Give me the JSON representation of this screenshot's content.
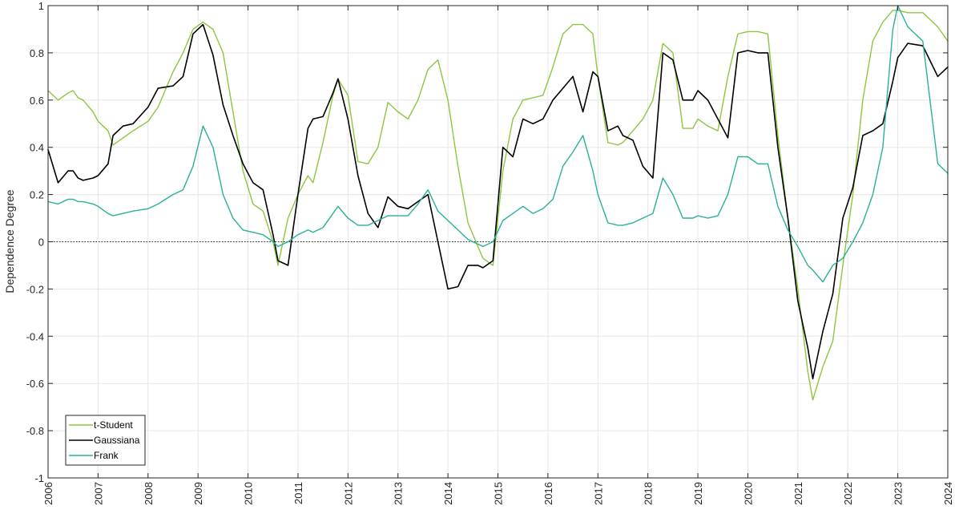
{
  "chart_data": {
    "type": "line",
    "ylabel": "Dependence Degree",
    "xlabel": "",
    "xlim": [
      2006,
      2024
    ],
    "ylim": [
      -1,
      1
    ],
    "x_ticks": [
      2006,
      2007,
      2008,
      2009,
      2010,
      2011,
      2012,
      2013,
      2014,
      2015,
      2016,
      2017,
      2018,
      2019,
      2020,
      2021,
      2022,
      2023,
      2024
    ],
    "y_ticks": [
      -1,
      -0.8,
      -0.6,
      -0.4,
      -0.2,
      0,
      0.2,
      0.4,
      0.6,
      0.8,
      1
    ],
    "grid": true,
    "reference_line": {
      "y": 0,
      "style": "dotted"
    },
    "legend_position": "bottom-left",
    "series": [
      {
        "name": "t-Student",
        "color": "#8dc63f",
        "x": [
          2006.0,
          2006.2,
          2006.4,
          2006.5,
          2006.6,
          2006.7,
          2006.9,
          2007.0,
          2007.2,
          2007.3,
          2007.5,
          2007.7,
          2008.0,
          2008.2,
          2008.5,
          2008.7,
          2008.9,
          2009.1,
          2009.3,
          2009.5,
          2009.7,
          2009.9,
          2010.1,
          2010.3,
          2010.5,
          2010.6,
          2010.8,
          2011.0,
          2011.2,
          2011.3,
          2011.5,
          2011.7,
          2011.8,
          2012.0,
          2012.2,
          2012.4,
          2012.6,
          2012.8,
          2013.0,
          2013.2,
          2013.4,
          2013.6,
          2013.8,
          2014.0,
          2014.2,
          2014.4,
          2014.6,
          2014.7,
          2014.9,
          2015.1,
          2015.3,
          2015.5,
          2015.7,
          2015.9,
          2016.1,
          2016.3,
          2016.5,
          2016.7,
          2016.9,
          2017.0,
          2017.2,
          2017.4,
          2017.5,
          2017.7,
          2017.9,
          2018.1,
          2018.3,
          2018.5,
          2018.7,
          2018.9,
          2019.0,
          2019.2,
          2019.4,
          2019.6,
          2019.8,
          2020.0,
          2020.2,
          2020.4,
          2020.6,
          2020.8,
          2021.0,
          2021.2,
          2021.3,
          2021.5,
          2021.7,
          2021.9,
          2022.1,
          2022.3,
          2022.5,
          2022.7,
          2022.9,
          2023.0,
          2023.2,
          2023.5,
          2023.8,
          2024.0
        ],
        "values": [
          0.64,
          0.6,
          0.63,
          0.64,
          0.61,
          0.6,
          0.55,
          0.51,
          0.47,
          0.41,
          0.44,
          0.47,
          0.51,
          0.57,
          0.72,
          0.8,
          0.9,
          0.93,
          0.9,
          0.8,
          0.55,
          0.3,
          0.16,
          0.13,
          0.0,
          -0.1,
          0.1,
          0.2,
          0.28,
          0.25,
          0.42,
          0.62,
          0.69,
          0.62,
          0.34,
          0.33,
          0.4,
          0.59,
          0.55,
          0.52,
          0.6,
          0.73,
          0.77,
          0.6,
          0.32,
          0.08,
          -0.02,
          -0.07,
          -0.1,
          0.3,
          0.52,
          0.6,
          0.61,
          0.62,
          0.74,
          0.88,
          0.92,
          0.92,
          0.88,
          0.7,
          0.42,
          0.41,
          0.42,
          0.47,
          0.52,
          0.6,
          0.84,
          0.8,
          0.48,
          0.48,
          0.52,
          0.49,
          0.47,
          0.7,
          0.88,
          0.89,
          0.89,
          0.88,
          0.45,
          0.1,
          -0.2,
          -0.55,
          -0.67,
          -0.53,
          -0.42,
          -0.1,
          0.2,
          0.6,
          0.85,
          0.93,
          0.98,
          0.98,
          0.97,
          0.97,
          0.91,
          0.85
        ],
        "linewidth": 1.4
      },
      {
        "name": "Gaussiana",
        "color": "#000000",
        "x": [
          2006.0,
          2006.2,
          2006.4,
          2006.5,
          2006.6,
          2006.7,
          2006.9,
          2007.0,
          2007.2,
          2007.3,
          2007.5,
          2007.7,
          2008.0,
          2008.2,
          2008.5,
          2008.7,
          2008.9,
          2009.1,
          2009.3,
          2009.5,
          2009.7,
          2009.9,
          2010.1,
          2010.3,
          2010.5,
          2010.6,
          2010.8,
          2011.0,
          2011.2,
          2011.3,
          2011.5,
          2011.7,
          2011.8,
          2012.0,
          2012.2,
          2012.4,
          2012.6,
          2012.8,
          2013.0,
          2013.2,
          2013.4,
          2013.6,
          2013.8,
          2014.0,
          2014.2,
          2014.4,
          2014.6,
          2014.7,
          2014.9,
          2015.1,
          2015.3,
          2015.5,
          2015.7,
          2015.9,
          2016.1,
          2016.3,
          2016.5,
          2016.7,
          2016.9,
          2017.0,
          2017.2,
          2017.4,
          2017.5,
          2017.7,
          2017.9,
          2018.1,
          2018.3,
          2018.5,
          2018.7,
          2018.9,
          2019.0,
          2019.2,
          2019.4,
          2019.6,
          2019.8,
          2020.0,
          2020.2,
          2020.4,
          2020.6,
          2020.8,
          2021.0,
          2021.2,
          2021.3,
          2021.5,
          2021.7,
          2021.9,
          2022.1,
          2022.3,
          2022.5,
          2022.7,
          2022.9,
          2023.0,
          2023.2,
          2023.5,
          2023.8,
          2024.0
        ],
        "values": [
          0.39,
          0.25,
          0.3,
          0.3,
          0.27,
          0.26,
          0.27,
          0.28,
          0.33,
          0.45,
          0.49,
          0.5,
          0.57,
          0.65,
          0.66,
          0.7,
          0.88,
          0.92,
          0.79,
          0.58,
          0.45,
          0.33,
          0.25,
          0.22,
          0.03,
          -0.08,
          -0.1,
          0.2,
          0.48,
          0.52,
          0.53,
          0.63,
          0.69,
          0.52,
          0.28,
          0.12,
          0.06,
          0.19,
          0.15,
          0.14,
          0.17,
          0.2,
          0.0,
          -0.2,
          -0.19,
          -0.1,
          -0.1,
          -0.11,
          -0.08,
          0.4,
          0.36,
          0.52,
          0.5,
          0.52,
          0.6,
          0.65,
          0.7,
          0.55,
          0.72,
          0.7,
          0.47,
          0.49,
          0.45,
          0.43,
          0.32,
          0.27,
          0.8,
          0.77,
          0.6,
          0.6,
          0.64,
          0.6,
          0.52,
          0.44,
          0.8,
          0.81,
          0.8,
          0.8,
          0.4,
          0.1,
          -0.25,
          -0.45,
          -0.58,
          -0.38,
          -0.22,
          0.1,
          0.23,
          0.45,
          0.47,
          0.5,
          0.68,
          0.78,
          0.84,
          0.83,
          0.7,
          0.74
        ],
        "linewidth": 1.6
      },
      {
        "name": "Frank",
        "color": "#2ab09a",
        "x": [
          2006.0,
          2006.2,
          2006.4,
          2006.5,
          2006.6,
          2006.7,
          2006.9,
          2007.0,
          2007.2,
          2007.3,
          2007.5,
          2007.7,
          2008.0,
          2008.2,
          2008.5,
          2008.7,
          2008.9,
          2009.1,
          2009.3,
          2009.5,
          2009.7,
          2009.9,
          2010.1,
          2010.3,
          2010.5,
          2010.6,
          2010.8,
          2011.0,
          2011.2,
          2011.3,
          2011.5,
          2011.7,
          2011.8,
          2012.0,
          2012.2,
          2012.4,
          2012.6,
          2012.8,
          2013.0,
          2013.2,
          2013.4,
          2013.6,
          2013.8,
          2014.0,
          2014.2,
          2014.4,
          2014.6,
          2014.7,
          2014.9,
          2015.1,
          2015.3,
          2015.5,
          2015.7,
          2015.9,
          2016.1,
          2016.3,
          2016.5,
          2016.7,
          2016.9,
          2017.0,
          2017.2,
          2017.4,
          2017.5,
          2017.7,
          2017.9,
          2018.1,
          2018.3,
          2018.5,
          2018.7,
          2018.9,
          2019.0,
          2019.2,
          2019.4,
          2019.6,
          2019.8,
          2020.0,
          2020.2,
          2020.4,
          2020.6,
          2020.8,
          2021.0,
          2021.2,
          2021.3,
          2021.5,
          2021.7,
          2021.9,
          2022.1,
          2022.3,
          2022.5,
          2022.7,
          2022.9,
          2023.0,
          2023.2,
          2023.5,
          2023.8,
          2024.0
        ],
        "values": [
          0.17,
          0.16,
          0.18,
          0.18,
          0.17,
          0.17,
          0.16,
          0.15,
          0.12,
          0.11,
          0.12,
          0.13,
          0.14,
          0.16,
          0.2,
          0.22,
          0.32,
          0.49,
          0.4,
          0.2,
          0.1,
          0.05,
          0.04,
          0.03,
          0.0,
          -0.02,
          0.0,
          0.03,
          0.05,
          0.04,
          0.06,
          0.12,
          0.15,
          0.1,
          0.07,
          0.07,
          0.09,
          0.11,
          0.11,
          0.11,
          0.16,
          0.22,
          0.13,
          0.09,
          0.05,
          0.01,
          -0.01,
          -0.02,
          0.0,
          0.09,
          0.12,
          0.15,
          0.12,
          0.14,
          0.18,
          0.32,
          0.38,
          0.45,
          0.3,
          0.2,
          0.08,
          0.07,
          0.07,
          0.08,
          0.1,
          0.12,
          0.27,
          0.2,
          0.1,
          0.1,
          0.11,
          0.1,
          0.11,
          0.2,
          0.36,
          0.36,
          0.33,
          0.33,
          0.15,
          0.05,
          -0.02,
          -0.1,
          -0.12,
          -0.17,
          -0.1,
          -0.07,
          0.0,
          0.08,
          0.2,
          0.4,
          0.9,
          1.0,
          0.91,
          0.85,
          0.33,
          0.29
        ],
        "linewidth": 1.4
      }
    ]
  }
}
